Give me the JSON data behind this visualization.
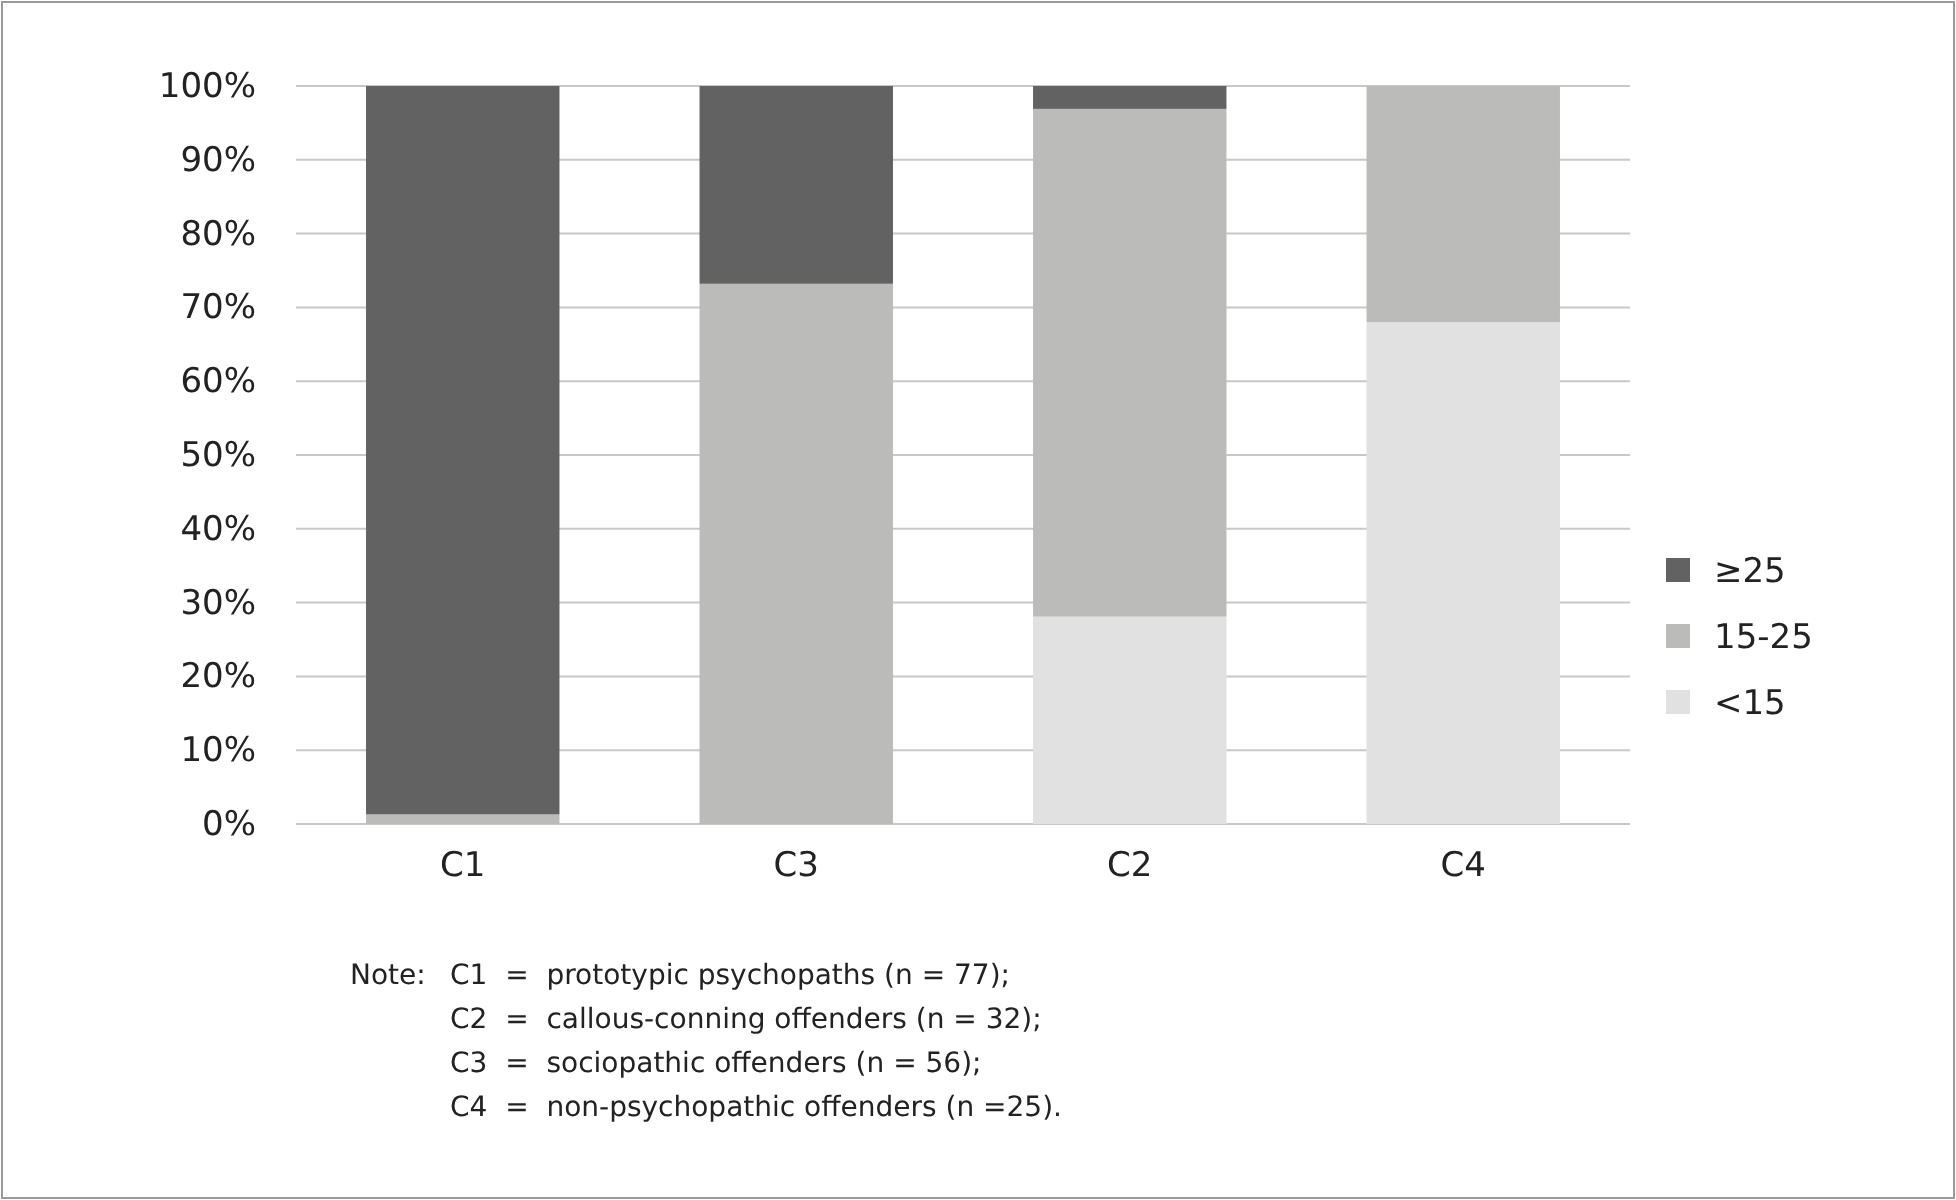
{
  "chart_data": {
    "type": "bar",
    "stacked": true,
    "categories": [
      "C1",
      "C3",
      "C2",
      "C4"
    ],
    "series": [
      {
        "name": "<15",
        "color": "#e1e1e1",
        "values": [
          0,
          0,
          28.1,
          68
        ]
      },
      {
        "name": "15-25",
        "color": "#bbbbba",
        "values": [
          1.3,
          73.2,
          68.8,
          32
        ]
      },
      {
        "name": "≥25",
        "color": "#626262",
        "values": [
          98.7,
          26.8,
          3.1,
          0
        ]
      }
    ],
    "ylim": [
      0,
      100
    ],
    "yticks": [
      {
        "value": 0,
        "label": "0%"
      },
      {
        "value": 10,
        "label": "10%"
      },
      {
        "value": 20,
        "label": "20%"
      },
      {
        "value": 30,
        "label": "30%"
      },
      {
        "value": 40,
        "label": "40%"
      },
      {
        "value": 50,
        "label": "50%"
      },
      {
        "value": 60,
        "label": "60%"
      },
      {
        "value": 70,
        "label": "70%"
      },
      {
        "value": 80,
        "label": "80%"
      },
      {
        "value": 90,
        "label": "90%"
      },
      {
        "value": 100,
        "label": "100%"
      }
    ],
    "grid": "y",
    "legend": "right",
    "annotations": [
      "Note:",
      "C1  =  prototypic psychopaths (n = 77);",
      "C2  =  callous-conning offenders (n = 32);",
      "C3  =  sociopathic offenders (n = 56);",
      "C4  =  non-psychopathic offenders (n =25)."
    ]
  }
}
